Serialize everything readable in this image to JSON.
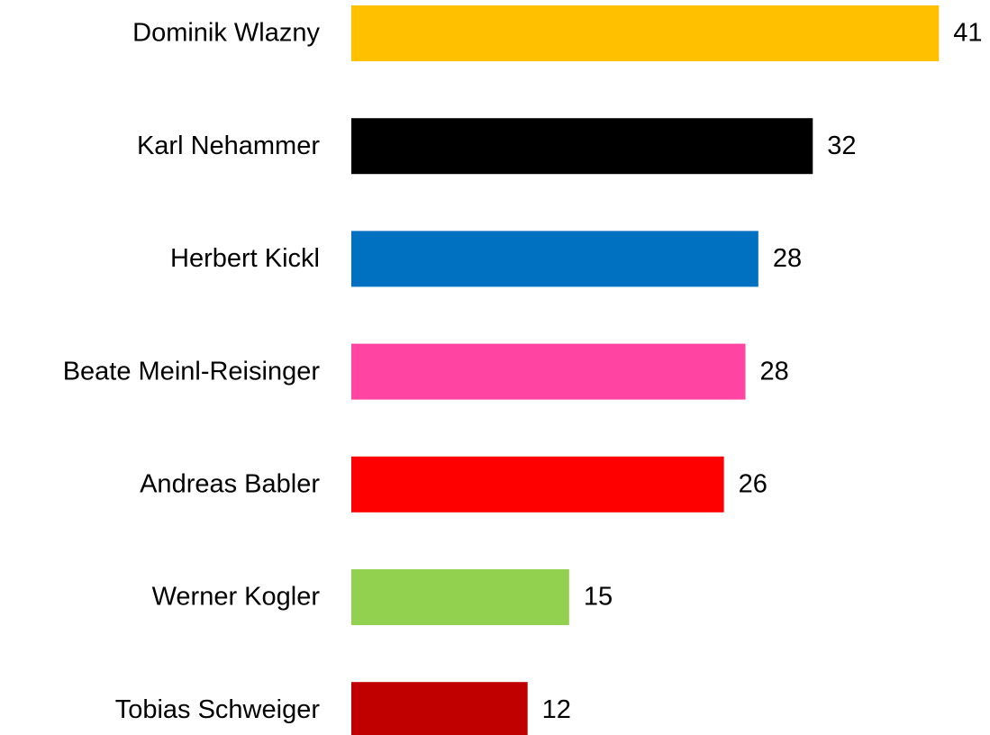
{
  "chart_data": {
    "type": "barh",
    "categories": [
      "Dominik Wlazny",
      "Karl Nehammer",
      "Herbert Kickl",
      "Beate Meinl-Reisinger",
      "Andreas Babler",
      "Werner Kogler",
      "Tobias Schweiger"
    ],
    "values": [
      41,
      32.2,
      28.4,
      27.5,
      26,
      15.2,
      12.3
    ],
    "value_labels": [
      "41",
      "32",
      "28",
      "28",
      "26",
      "15",
      "12"
    ],
    "colors": [
      "#ffc000",
      "#000000",
      "#0070c0",
      "#ff45a1",
      "#ff0000",
      "#92d050",
      "#c00000"
    ],
    "xlim": [
      0,
      44
    ]
  }
}
